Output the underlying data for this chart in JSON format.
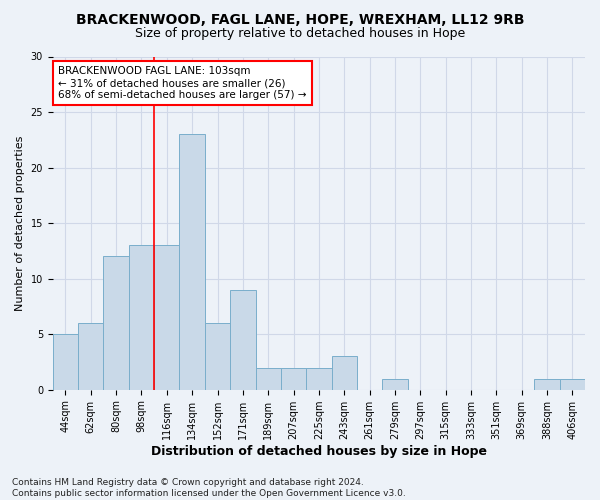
{
  "title1": "BRACKENWOOD, FAGL LANE, HOPE, WREXHAM, LL12 9RB",
  "title2": "Size of property relative to detached houses in Hope",
  "xlabel": "Distribution of detached houses by size in Hope",
  "ylabel": "Number of detached properties",
  "bin_labels": [
    "44sqm",
    "62sqm",
    "80sqm",
    "98sqm",
    "116sqm",
    "134sqm",
    "152sqm",
    "171sqm",
    "189sqm",
    "207sqm",
    "225sqm",
    "243sqm",
    "261sqm",
    "279sqm",
    "297sqm",
    "315sqm",
    "333sqm",
    "351sqm",
    "369sqm",
    "388sqm",
    "406sqm"
  ],
  "bar_values": [
    5,
    6,
    12,
    13,
    13,
    23,
    6,
    9,
    2,
    2,
    2,
    3,
    0,
    1,
    0,
    0,
    0,
    0,
    0,
    1,
    1
  ],
  "bar_color": "#c9d9e8",
  "bar_edge_color": "#7aaecb",
  "grid_color": "#d0d8e8",
  "background_color": "#edf2f8",
  "red_line_x": 3.5,
  "annotation_text": "BRACKENWOOD FAGL LANE: 103sqm\n← 31% of detached houses are smaller (26)\n68% of semi-detached houses are larger (57) →",
  "annotation_box_color": "white",
  "annotation_box_edge": "red",
  "ylim": [
    0,
    30
  ],
  "yticks": [
    0,
    5,
    10,
    15,
    20,
    25,
    30
  ],
  "footnote": "Contains HM Land Registry data © Crown copyright and database right 2024.\nContains public sector information licensed under the Open Government Licence v3.0.",
  "title1_fontsize": 10,
  "title2_fontsize": 9,
  "xlabel_fontsize": 9,
  "ylabel_fontsize": 8,
  "tick_fontsize": 7,
  "annotation_fontsize": 7.5,
  "footnote_fontsize": 6.5
}
